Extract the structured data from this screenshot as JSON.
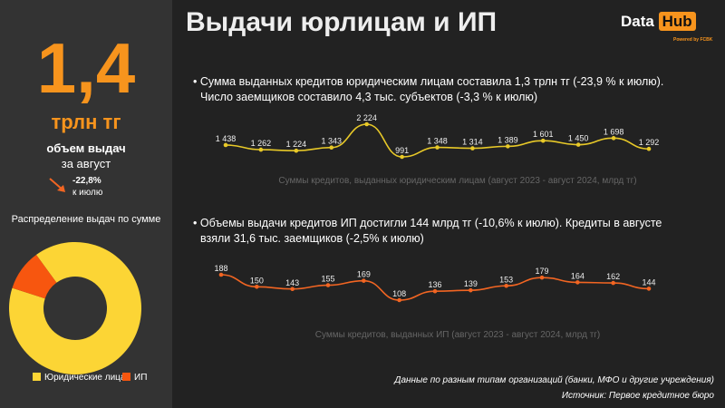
{
  "title": "Выдачи юрлицам и ИП",
  "logo": {
    "text1": "Data",
    "text2": "Hub",
    "powered": "Powered by FCBK"
  },
  "kpi": {
    "value": "1,4",
    "unit": "трлн тг",
    "label1": "объем выдач",
    "label2": "за август",
    "change": "-22,8%",
    "change_label": "к июлю"
  },
  "distribution": {
    "title": "Распределение выдач по сумме",
    "legend": [
      "Юридические лица",
      "ИП"
    ],
    "colors": [
      "#fcd535",
      "#f7560f"
    ]
  },
  "section1": {
    "line1": "• Сумма выданных кредитов юридическим лицам составила 1,3 трлн тг (-23,9 % к июлю).",
    "line2": "Число заемщиков составило 4,3 тыс. субъектов (-3,3 % к июлю)"
  },
  "section2": {
    "line1": "• Объемы выдачи кредитов ИП достигли 144 млрд тг (-10,6% к июлю). Кредиты в августе",
    "line2": "взяли 31,6 тыс. заемщиков (-2,5% к июлю)"
  },
  "footer": {
    "note": "Данные по разным типам организаций (банки, МФО и другие учреждения)",
    "source": "Источник: Первое кредитное бюро"
  },
  "chart_data": [
    {
      "type": "line",
      "title": "Суммы кредитов, выданных юридическим лицам (август 2023 - август 2024, млрд тг)",
      "color": "#e8c928",
      "labels": [
        "1 438",
        "1 262",
        "1 224",
        "1 343",
        "2 224",
        "991",
        "1 348",
        "1 314",
        "1 389",
        "1 601",
        "1 450",
        "1 698",
        "1 292"
      ],
      "values": [
        1438,
        1262,
        1224,
        1343,
        2224,
        991,
        1348,
        1314,
        1389,
        1601,
        1450,
        1698,
        1292
      ]
    },
    {
      "type": "line",
      "title": "Суммы кредитов, выданных ИП  (август  2023 - август 2024, млрд тг)",
      "color": "#f26522",
      "labels": [
        "188",
        "150",
        "143",
        "155",
        "169",
        "108",
        "136",
        "139",
        "153",
        "179",
        "164",
        "162",
        "144"
      ],
      "values": [
        188,
        150,
        143,
        155,
        169,
        108,
        136,
        139,
        153,
        179,
        164,
        162,
        144
      ]
    },
    {
      "type": "pie",
      "categories": [
        "Юридические лица",
        "ИП"
      ],
      "values": [
        1292,
        144
      ]
    }
  ]
}
